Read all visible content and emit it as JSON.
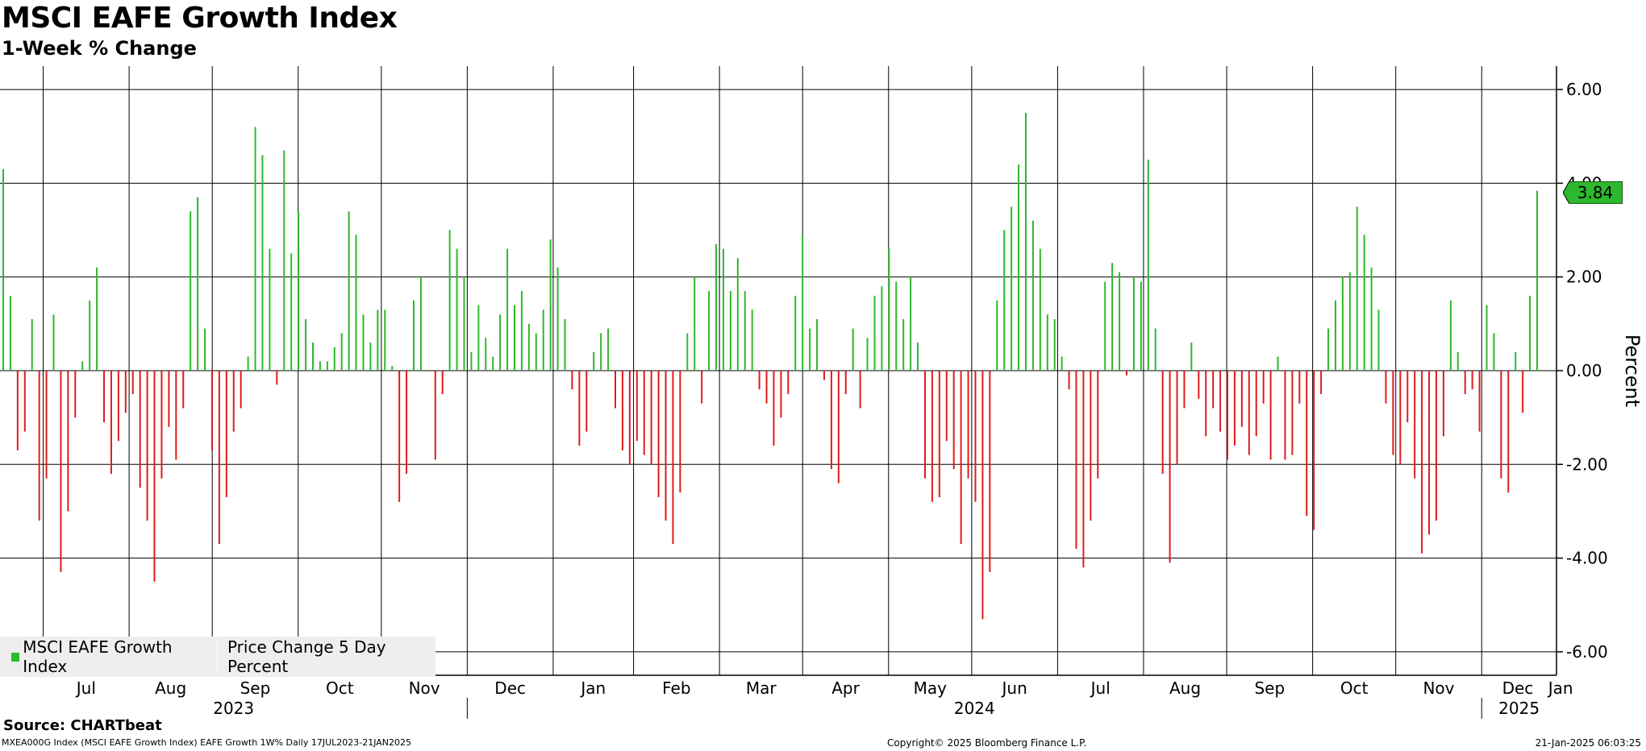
{
  "header": {
    "title": "MSCI EAFE Growth Index",
    "subtitle": "1-Week % Change"
  },
  "source": "Source: CHARTbeat",
  "footer": {
    "left": "MXEA000G Index (MSCI EAFE Growth Index) EAFE Growth 1W%  Daily 17JUL2023-21JAN2025",
    "center": "Copyright© 2025 Bloomberg Finance L.P.",
    "right": "21-Jan-2025 06:03:25"
  },
  "legend": {
    "series_name": "MSCI EAFE Growth Index",
    "series_desc": "Price Change 5 Day Percent"
  },
  "last_value_label": "3.84",
  "colors": {
    "positive": "#2db82d",
    "negative": "#e01b1b",
    "grid": "#000000"
  },
  "chart_data": {
    "type": "bar",
    "title": "MSCI EAFE Growth Index",
    "subtitle": "1-Week % Change",
    "ylabel": "Percent",
    "ylim": [
      -6.5,
      6.5
    ],
    "y_ticks": [
      "6.00",
      "4.00",
      "2.00",
      "0.00",
      "-2.00",
      "-4.00",
      "-6.00"
    ],
    "y_tick_values": [
      6,
      4,
      2,
      0,
      -2,
      -4,
      -6
    ],
    "grid": true,
    "legend_position": "bottom-left",
    "start_date": "2023-07-17",
    "end_date": "2025-01-21",
    "month_labels": [
      "Jul",
      "Aug",
      "Sep",
      "Oct",
      "Nov",
      "Dec",
      "Jan",
      "Feb",
      "Mar",
      "Apr",
      "May",
      "Jun",
      "Jul",
      "Aug",
      "Sep",
      "Oct",
      "Nov",
      "Dec",
      "Jan"
    ],
    "year_labels": [
      "2023",
      "2024",
      "2025"
    ],
    "weekly_values": [
      4.3,
      1.6,
      -1.7,
      -1.3,
      1.1,
      -3.2,
      -2.3,
      1.2,
      -4.3,
      -3.0,
      -1.0,
      0.2,
      1.5,
      2.2,
      -1.1,
      -2.2,
      -1.5,
      -0.9,
      -0.5,
      -2.5,
      -3.2,
      -4.5,
      -2.3,
      -1.2,
      -1.9,
      -0.8,
      3.4,
      3.7,
      0.9,
      -1.7,
      -3.7,
      -2.7,
      -1.3,
      -0.8,
      0.3,
      5.2,
      4.6,
      2.6,
      -0.3,
      4.7,
      2.5,
      3.4,
      1.1,
      0.6,
      0.2,
      0.2,
      0.5,
      0.8,
      3.4,
      2.9,
      1.2,
      0.6,
      1.3,
      1.3,
      0.1,
      -2.8,
      -2.2,
      1.5,
      2.0,
      0.0,
      -1.9,
      -0.5,
      3.0,
      2.6,
      2.0,
      0.4,
      1.4,
      0.7,
      0.3,
      1.2,
      2.6,
      1.4,
      1.7,
      1.0,
      0.8,
      1.3,
      2.8,
      2.2,
      1.1,
      -0.4,
      -1.6,
      -1.3,
      0.4,
      0.8,
      0.9,
      -0.8,
      -1.7,
      -2.0,
      -1.5,
      -1.8,
      -2.0,
      -2.7,
      -3.2,
      -3.7,
      -2.6,
      0.8,
      2.0,
      -0.7,
      1.7,
      2.7,
      2.6,
      1.7,
      2.4,
      1.7,
      1.3,
      -0.4,
      -0.7,
      -1.6,
      -1.0,
      -0.5,
      1.6,
      2.9,
      0.9,
      1.1,
      -0.2,
      -2.1,
      -2.4,
      -0.5,
      0.9,
      -0.8,
      0.7,
      1.6,
      1.8,
      2.6,
      1.9,
      1.1,
      2.0,
      0.6,
      -2.3,
      -2.8,
      -2.7,
      -1.5,
      -2.1,
      -3.7,
      -2.3,
      -2.8,
      -5.3,
      -4.3,
      1.5,
      3.0,
      3.5,
      4.4,
      5.5,
      3.2,
      2.6,
      1.2,
      1.1,
      0.3,
      -0.4,
      -3.8,
      -4.2,
      -3.2,
      -2.3,
      1.9,
      2.3,
      2.1,
      -0.1,
      2.0,
      1.9,
      4.5,
      0.9,
      -2.2,
      -4.1,
      -2.0,
      -0.8,
      0.6,
      -0.6,
      -1.4,
      -0.8,
      -1.3,
      -1.9,
      -1.6,
      -1.2,
      -1.8,
      -1.4,
      -0.7,
      -1.9,
      0.3,
      -1.9,
      -1.8,
      -0.7,
      -3.1,
      -3.4,
      -0.5,
      0.9,
      1.5,
      2.0,
      2.1,
      3.5,
      2.9,
      2.2,
      1.3,
      -0.7,
      -1.8,
      -2.0,
      -1.1,
      -2.3,
      -3.9,
      -3.5,
      -3.2,
      -1.4,
      1.5,
      0.4,
      -0.5,
      -0.4,
      -1.3,
      1.4,
      0.8,
      -2.3,
      -2.6,
      0.4,
      -0.9,
      1.6,
      3.84
    ]
  }
}
